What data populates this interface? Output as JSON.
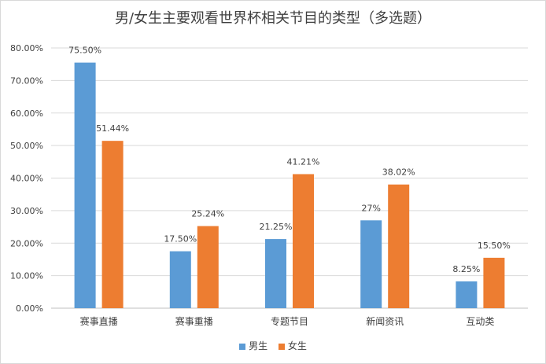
{
  "chart_data": {
    "type": "bar",
    "title": "男/女生主要观看世界杯相关节目的类型（多选题）",
    "categories": [
      "赛事直播",
      "赛事重播",
      "专题节目",
      "新闻资讯",
      "互动类"
    ],
    "series": [
      {
        "name": "男生",
        "color": "#5b9bd5",
        "values": [
          75.5,
          17.5,
          21.25,
          27,
          8.25
        ],
        "labels": [
          "75.50%",
          "17.50%",
          "21.25%",
          "27%",
          "8.25%"
        ]
      },
      {
        "name": "女生",
        "color": "#ed7d31",
        "values": [
          51.44,
          25.24,
          41.21,
          38.02,
          15.5
        ],
        "labels": [
          "51.44%",
          "25.24%",
          "41.21%",
          "38.02%",
          "15.50%"
        ]
      }
    ],
    "ylim": [
      0,
      80
    ],
    "yticks": [
      "0.00%",
      "10.00%",
      "20.00%",
      "30.00%",
      "40.00%",
      "50.00%",
      "60.00%",
      "70.00%",
      "80.00%"
    ],
    "grid": true,
    "legend": "bottom"
  }
}
